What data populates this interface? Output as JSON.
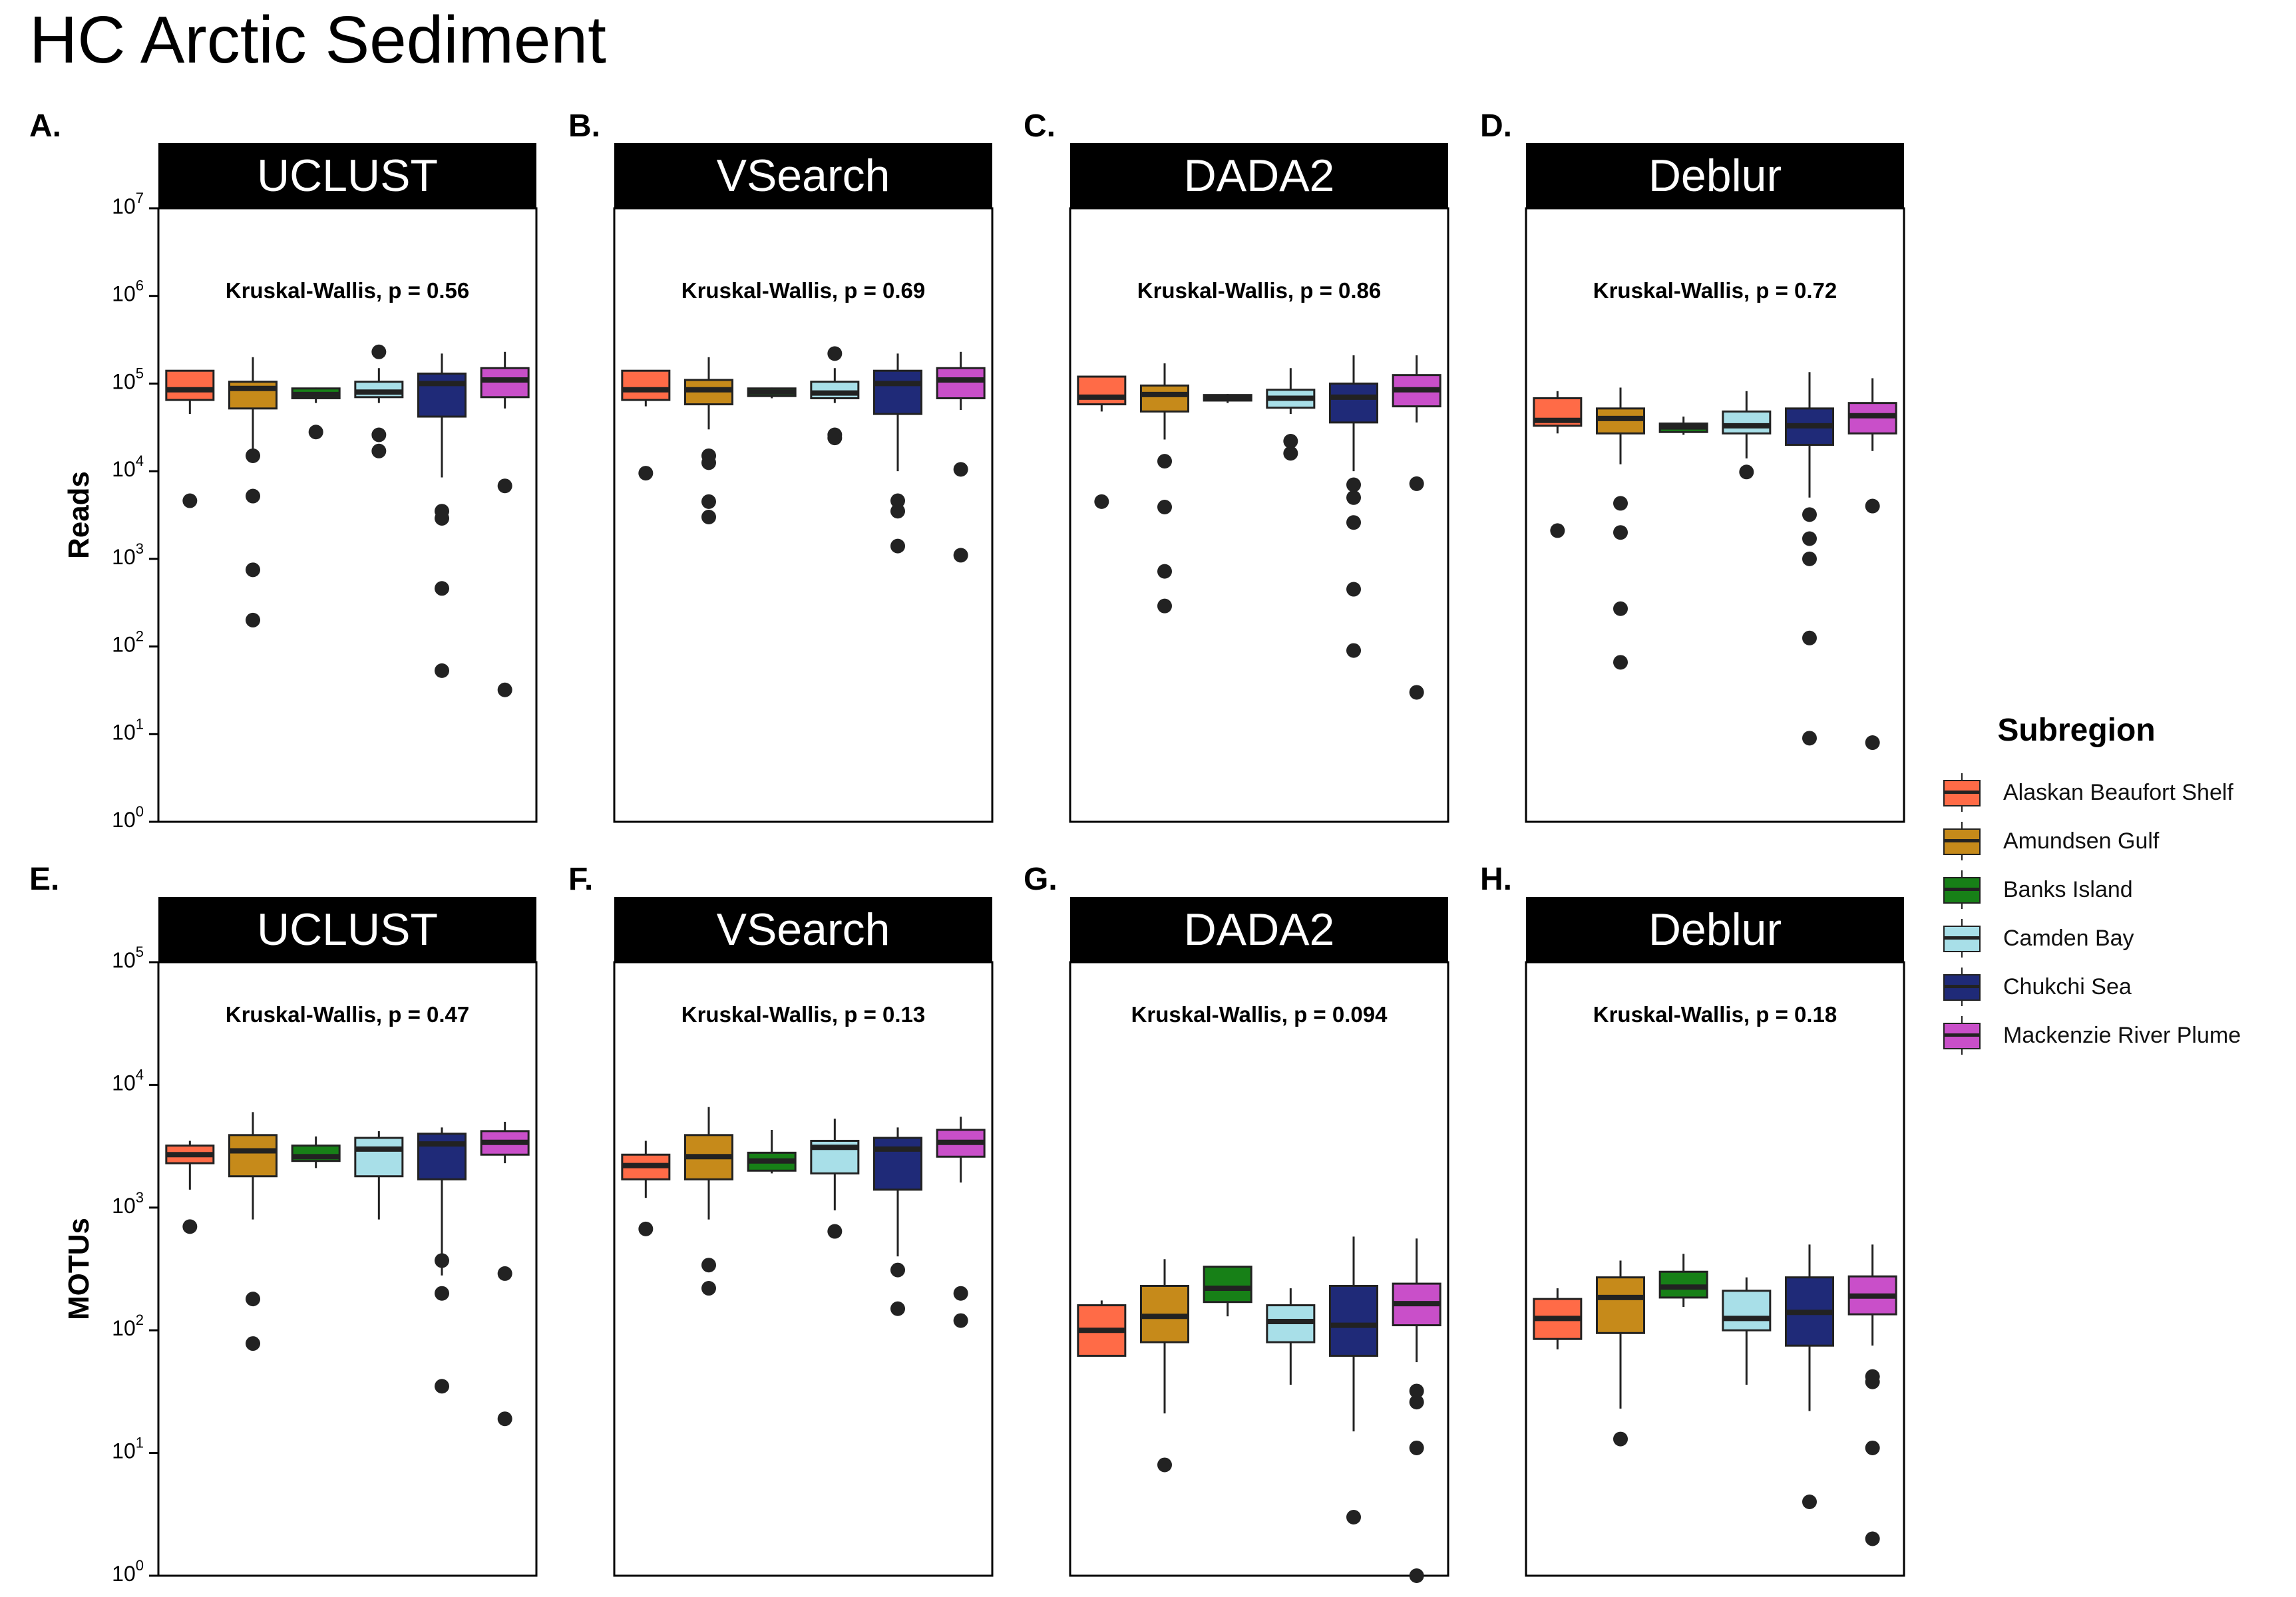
{
  "title": "HC Arctic Sediment",
  "colors": {
    "Alaskan Beaufort Shelf": "#ff6b47",
    "Amundsen Gulf": "#c68a1a",
    "Banks Island": "#178017",
    "Camden Bay": "#a8dfe8",
    "Chukchi Sea": "#1f2a78",
    "Mackenzie River Plume": "#c94fc9"
  },
  "legend": {
    "title": "Subregion",
    "items": [
      "Alaskan Beaufort Shelf",
      "Amundsen Gulf",
      "Banks Island",
      "Camden Bay",
      "Chukchi Sea",
      "Mackenzie River Plume"
    ]
  },
  "chart_data": [
    {
      "type": "box",
      "panel": "A.",
      "strip": "UCLUST",
      "ylabel": "Reads",
      "yscale": "log10",
      "ylim": [
        1,
        10000000
      ],
      "yticks": [
        "10^0",
        "10^1",
        "10^2",
        "10^3",
        "10^4",
        "10^5",
        "10^6",
        "10^7"
      ],
      "annotation": "Kruskal-Wallis, p = 0.56",
      "boxes": [
        {
          "group": "Alaskan Beaufort Shelf",
          "q1": 65000,
          "median": 85000,
          "q3": 140000,
          "lo": 45000,
          "hi": 140000,
          "outliers": [
            4600
          ]
        },
        {
          "group": "Amundsen Gulf",
          "q1": 52000,
          "median": 88000,
          "q3": 105000,
          "lo": 15000,
          "hi": 200000,
          "outliers": [
            15000,
            5200,
            750,
            200
          ]
        },
        {
          "group": "Banks Island",
          "q1": 68000,
          "median": 75000,
          "q3": 88000,
          "lo": 60000,
          "hi": 90000,
          "outliers": [
            28000
          ]
        },
        {
          "group": "Camden Bay",
          "q1": 70000,
          "median": 80000,
          "q3": 105000,
          "lo": 60000,
          "hi": 150000,
          "outliers": [
            230000,
            26000,
            17000
          ]
        },
        {
          "group": "Chukchi Sea",
          "q1": 42000,
          "median": 100000,
          "q3": 130000,
          "lo": 8500,
          "hi": 220000,
          "outliers": [
            3500,
            2900,
            460,
            53
          ]
        },
        {
          "group": "Mackenzie River Plume",
          "q1": 70000,
          "median": 110000,
          "q3": 150000,
          "lo": 52000,
          "hi": 230000,
          "outliers": [
            6800,
            32
          ]
        }
      ]
    },
    {
      "type": "box",
      "panel": "B.",
      "strip": "VSearch",
      "ylabel": "",
      "yscale": "log10",
      "ylim": [
        1,
        10000000
      ],
      "annotation": "Kruskal-Wallis, p = 0.69",
      "boxes": [
        {
          "group": "Alaskan Beaufort Shelf",
          "q1": 65000,
          "median": 85000,
          "q3": 140000,
          "lo": 55000,
          "hi": 140000,
          "outliers": [
            9500
          ]
        },
        {
          "group": "Amundsen Gulf",
          "q1": 58000,
          "median": 85000,
          "q3": 110000,
          "lo": 30000,
          "hi": 200000,
          "outliers": [
            15000,
            12500,
            4500,
            3000
          ]
        },
        {
          "group": "Banks Island",
          "q1": 72000,
          "median": 80000,
          "q3": 88000,
          "lo": 68000,
          "hi": 90000,
          "outliers": []
        },
        {
          "group": "Camden Bay",
          "q1": 68000,
          "median": 78000,
          "q3": 105000,
          "lo": 60000,
          "hi": 150000,
          "outliers": [
            220000,
            26000,
            24000
          ]
        },
        {
          "group": "Chukchi Sea",
          "q1": 45000,
          "median": 100000,
          "q3": 140000,
          "lo": 10000,
          "hi": 220000,
          "outliers": [
            4600,
            3500,
            1400
          ]
        },
        {
          "group": "Mackenzie River Plume",
          "q1": 68000,
          "median": 110000,
          "q3": 150000,
          "lo": 50000,
          "hi": 230000,
          "outliers": [
            10500,
            1100
          ]
        }
      ]
    },
    {
      "type": "box",
      "panel": "C.",
      "strip": "DADA2",
      "ylabel": "",
      "yscale": "log10",
      "ylim": [
        1,
        10000000
      ],
      "annotation": "Kruskal-Wallis, p = 0.86",
      "boxes": [
        {
          "group": "Alaskan Beaufort Shelf",
          "q1": 58000,
          "median": 70000,
          "q3": 120000,
          "lo": 48000,
          "hi": 120000,
          "outliers": [
            4500
          ]
        },
        {
          "group": "Amundsen Gulf",
          "q1": 48000,
          "median": 75000,
          "q3": 95000,
          "lo": 23000,
          "hi": 170000,
          "outliers": [
            13000,
            3900,
            720,
            290
          ]
        },
        {
          "group": "Banks Island",
          "q1": 64000,
          "median": 70000,
          "q3": 74000,
          "lo": 60000,
          "hi": 76000,
          "outliers": []
        },
        {
          "group": "Camden Bay",
          "q1": 53000,
          "median": 68000,
          "q3": 85000,
          "lo": 45000,
          "hi": 150000,
          "outliers": [
            22000,
            16000
          ]
        },
        {
          "group": "Chukchi Sea",
          "q1": 36000,
          "median": 70000,
          "q3": 100000,
          "lo": 10000,
          "hi": 210000,
          "outliers": [
            7000,
            5000,
            2600,
            450,
            90
          ]
        },
        {
          "group": "Mackenzie River Plume",
          "q1": 55000,
          "median": 85000,
          "q3": 125000,
          "lo": 36000,
          "hi": 210000,
          "outliers": [
            7200,
            30
          ]
        }
      ]
    },
    {
      "type": "box",
      "panel": "D.",
      "strip": "Deblur",
      "ylabel": "",
      "yscale": "log10",
      "ylim": [
        1,
        10000000
      ],
      "annotation": "Kruskal-Wallis, p = 0.72",
      "boxes": [
        {
          "group": "Alaskan Beaufort Shelf",
          "q1": 33000,
          "median": 38000,
          "q3": 68000,
          "lo": 27000,
          "hi": 82000,
          "outliers": [
            2100
          ]
        },
        {
          "group": "Amundsen Gulf",
          "q1": 27000,
          "median": 40000,
          "q3": 52000,
          "lo": 12000,
          "hi": 90000,
          "outliers": [
            4300,
            2000,
            270,
            66
          ]
        },
        {
          "group": "Banks Island",
          "q1": 28000,
          "median": 32000,
          "q3": 35000,
          "lo": 26000,
          "hi": 42000,
          "outliers": []
        },
        {
          "group": "Camden Bay",
          "q1": 27000,
          "median": 33000,
          "q3": 48000,
          "lo": 14000,
          "hi": 82000,
          "outliers": [
            9800
          ]
        },
        {
          "group": "Chukchi Sea",
          "q1": 20000,
          "median": 33000,
          "q3": 52000,
          "lo": 5000,
          "hi": 135000,
          "outliers": [
            3200,
            1700,
            1000,
            125,
            9
          ]
        },
        {
          "group": "Mackenzie River Plume",
          "q1": 27000,
          "median": 43000,
          "q3": 60000,
          "lo": 17000,
          "hi": 115000,
          "outliers": [
            4000,
            8
          ]
        }
      ]
    },
    {
      "type": "box",
      "panel": "E.",
      "strip": "UCLUST",
      "ylabel": "MOTUs",
      "yscale": "log10",
      "ylim": [
        1,
        100000
      ],
      "yticks": [
        "10^0",
        "10^1",
        "10^2",
        "10^3",
        "10^4",
        "10^5"
      ],
      "annotation": "Kruskal-Wallis, p = 0.47",
      "boxes": [
        {
          "group": "Alaskan Beaufort Shelf",
          "q1": 2300,
          "median": 2700,
          "q3": 3200,
          "lo": 1400,
          "hi": 3500,
          "outliers": [
            700
          ]
        },
        {
          "group": "Amundsen Gulf",
          "q1": 1800,
          "median": 2900,
          "q3": 3900,
          "lo": 800,
          "hi": 6000,
          "outliers": [
            180,
            78
          ]
        },
        {
          "group": "Banks Island",
          "q1": 2400,
          "median": 2600,
          "q3": 3200,
          "lo": 2100,
          "hi": 3800,
          "outliers": []
        },
        {
          "group": "Camden Bay",
          "q1": 1800,
          "median": 3000,
          "q3": 3700,
          "lo": 800,
          "hi": 4200,
          "outliers": []
        },
        {
          "group": "Chukchi Sea",
          "q1": 1700,
          "median": 3300,
          "q3": 4000,
          "lo": 280,
          "hi": 4500,
          "outliers": [
            370,
            200,
            35
          ]
        },
        {
          "group": "Mackenzie River Plume",
          "q1": 2700,
          "median": 3400,
          "q3": 4200,
          "lo": 2300,
          "hi": 5000,
          "outliers": [
            290,
            19
          ]
        }
      ]
    },
    {
      "type": "box",
      "panel": "F.",
      "strip": "VSearch",
      "ylabel": "",
      "yscale": "log10",
      "ylim": [
        1,
        100000
      ],
      "annotation": "Kruskal-Wallis, p = 0.13",
      "boxes": [
        {
          "group": "Alaskan Beaufort Shelf",
          "q1": 1700,
          "median": 2200,
          "q3": 2700,
          "lo": 1200,
          "hi": 3500,
          "outliers": [
            670
          ]
        },
        {
          "group": "Amundsen Gulf",
          "q1": 1700,
          "median": 2600,
          "q3": 3900,
          "lo": 800,
          "hi": 6600,
          "outliers": [
            340,
            220
          ]
        },
        {
          "group": "Banks Island",
          "q1": 2000,
          "median": 2400,
          "q3": 2800,
          "lo": 1900,
          "hi": 4300,
          "outliers": []
        },
        {
          "group": "Camden Bay",
          "q1": 1900,
          "median": 3100,
          "q3": 3500,
          "lo": 950,
          "hi": 5300,
          "outliers": [
            640
          ]
        },
        {
          "group": "Chukchi Sea",
          "q1": 1400,
          "median": 3000,
          "q3": 3700,
          "lo": 400,
          "hi": 4500,
          "outliers": [
            310,
            150
          ]
        },
        {
          "group": "Mackenzie River Plume",
          "q1": 2600,
          "median": 3400,
          "q3": 4300,
          "lo": 1600,
          "hi": 5500,
          "outliers": [
            200,
            120
          ]
        }
      ]
    },
    {
      "type": "box",
      "panel": "G.",
      "strip": "DADA2",
      "ylabel": "",
      "yscale": "log10",
      "ylim": [
        1,
        100000
      ],
      "annotation": "Kruskal-Wallis, p = 0.094",
      "boxes": [
        {
          "group": "Alaskan Beaufort Shelf",
          "q1": 62,
          "median": 100,
          "q3": 160,
          "lo": 62,
          "hi": 175,
          "outliers": []
        },
        {
          "group": "Amundsen Gulf",
          "q1": 80,
          "median": 130,
          "q3": 230,
          "lo": 21,
          "hi": 380,
          "outliers": [
            8
          ]
        },
        {
          "group": "Banks Island",
          "q1": 170,
          "median": 220,
          "q3": 330,
          "lo": 130,
          "hi": 330,
          "outliers": []
        },
        {
          "group": "Camden Bay",
          "q1": 80,
          "median": 118,
          "q3": 160,
          "lo": 36,
          "hi": 220,
          "outliers": []
        },
        {
          "group": "Chukchi Sea",
          "q1": 62,
          "median": 110,
          "q3": 230,
          "lo": 15,
          "hi": 580,
          "outliers": [
            3
          ]
        },
        {
          "group": "Mackenzie River Plume",
          "q1": 110,
          "median": 165,
          "q3": 240,
          "lo": 55,
          "hi": 560,
          "outliers": [
            32,
            26,
            11,
            1
          ]
        }
      ]
    },
    {
      "type": "box",
      "panel": "H.",
      "strip": "Deblur",
      "ylabel": "",
      "yscale": "log10",
      "ylim": [
        1,
        100000
      ],
      "annotation": "Kruskal-Wallis, p = 0.18",
      "boxes": [
        {
          "group": "Alaskan Beaufort Shelf",
          "q1": 85,
          "median": 125,
          "q3": 180,
          "lo": 70,
          "hi": 220,
          "outliers": []
        },
        {
          "group": "Amundsen Gulf",
          "q1": 95,
          "median": 185,
          "q3": 270,
          "lo": 23,
          "hi": 370,
          "outliers": [
            13
          ]
        },
        {
          "group": "Banks Island",
          "q1": 185,
          "median": 225,
          "q3": 300,
          "lo": 155,
          "hi": 420,
          "outliers": []
        },
        {
          "group": "Camden Bay",
          "q1": 100,
          "median": 125,
          "q3": 210,
          "lo": 36,
          "hi": 270,
          "outliers": []
        },
        {
          "group": "Chukchi Sea",
          "q1": 75,
          "median": 140,
          "q3": 270,
          "lo": 22,
          "hi": 500,
          "outliers": [
            4
          ]
        },
        {
          "group": "Mackenzie River Plume",
          "q1": 135,
          "median": 190,
          "q3": 275,
          "lo": 75,
          "hi": 500,
          "outliers": [
            42,
            38,
            11,
            2
          ]
        }
      ]
    }
  ]
}
